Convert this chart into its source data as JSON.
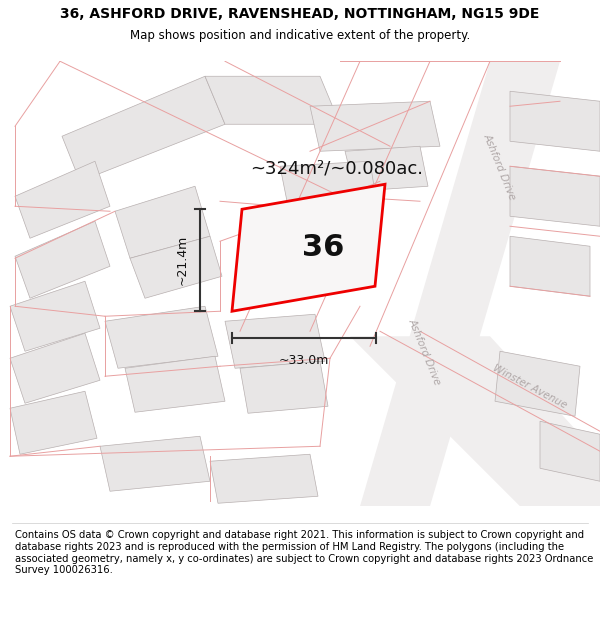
{
  "title": "36, ASHFORD DRIVE, RAVENSHEAD, NOTTINGHAM, NG15 9DE",
  "subtitle": "Map shows position and indicative extent of the property.",
  "footer": "Contains OS data © Crown copyright and database right 2021. This information is subject to Crown copyright and database rights 2023 and is reproduced with the permission of HM Land Registry. The polygons (including the associated geometry, namely x, y co-ordinates) are subject to Crown copyright and database rights 2023 Ordnance Survey 100026316.",
  "area_text": "~324m²/~0.080ac.",
  "width_text": "~33.0m",
  "height_text": "~21.4m",
  "number_text": "36",
  "map_bg": "#ffffff",
  "building_fill": "#e8e6e6",
  "building_edge": "#b8b0b0",
  "road_fill": "#ebebeb",
  "plot_line": "#e8a0a0",
  "highlight_fill": "#f5f3f3",
  "highlight_edge": "#ff0000",
  "road_label_color": "#b0a8a8",
  "dim_color": "#333333",
  "title_fontsize": 10,
  "subtitle_fontsize": 8.5,
  "footer_fontsize": 7.2,
  "area_fontsize": 13,
  "num_fontsize": 22,
  "dim_fontsize": 9
}
